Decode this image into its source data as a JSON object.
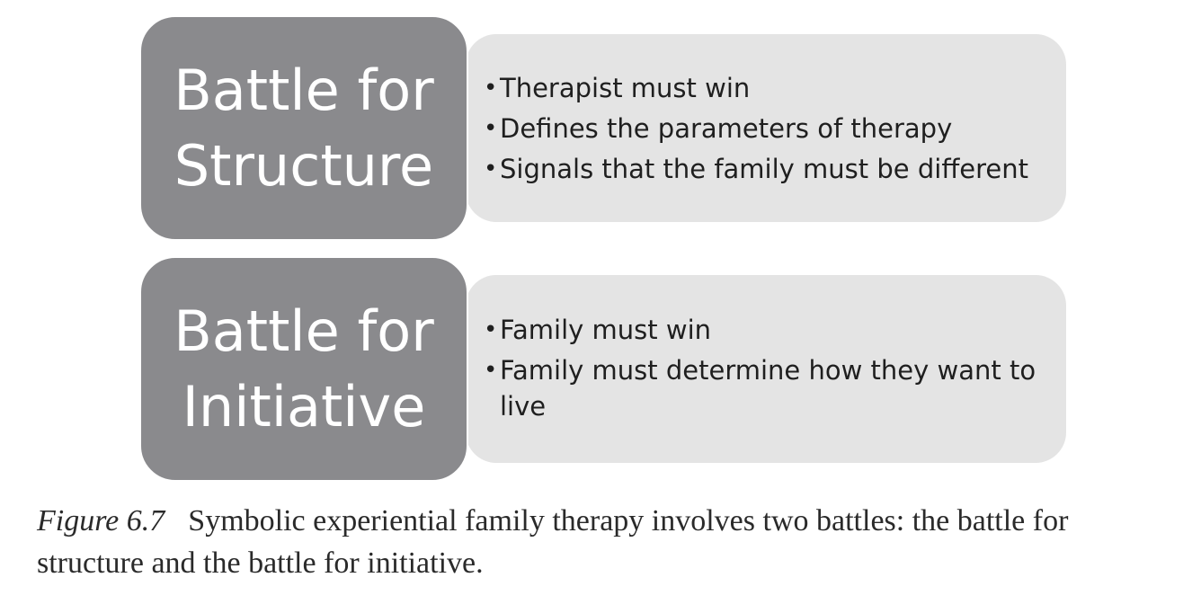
{
  "diagram": {
    "rows": [
      {
        "title_line1": "Battle for",
        "title_line2": "Structure",
        "bullets": [
          "Therapist must win",
          "Defines the parameters of therapy",
          "Signals that the family must be different"
        ]
      },
      {
        "title_line1": "Battle for",
        "title_line2": "Initiative",
        "bullets": [
          "Family must win",
          "Family must determine how they want to live"
        ]
      }
    ]
  },
  "caption": {
    "label": "Figure 6.7",
    "text": "Symbolic experiential family therapy involves two battles: the battle for structure and the battle for initiative."
  },
  "colors": {
    "title_box": "#8a8a8d",
    "panel": "#e4e4e4",
    "title_text": "#ffffff",
    "body_text": "#1f1f1f"
  }
}
